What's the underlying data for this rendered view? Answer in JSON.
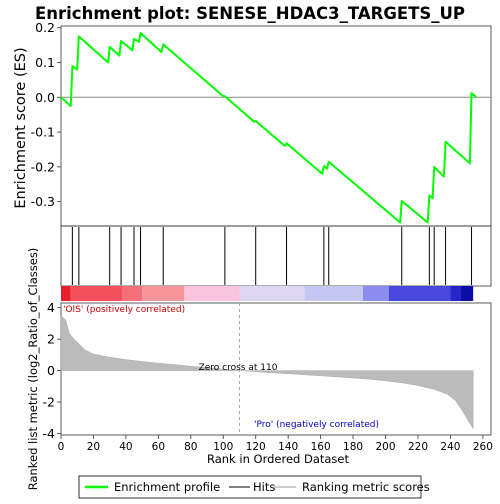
{
  "title": "Enrichment plot: SENESE_HDAC3_TARGETS_UP",
  "es_ylabel": "Enrichment score (ES)",
  "metric_ylabel": "Ranked list metric (log2_Ratio_of_Classes)",
  "xlabel": "Rank in Ordered Dataset",
  "pos_label": "'OIS' (positively correlated)",
  "neg_label": "'Pro' (negatively correlated)",
  "zero_cross_label": "Zero cross at 110",
  "legend": {
    "profile": "Enrichment profile",
    "hits": "Hits",
    "metric": "Ranking metric scores"
  },
  "colors": {
    "profile": "#00ff00",
    "pos_text": "#cc0000",
    "neg_text": "#0000cc",
    "metric_fill": "#bbbbbb",
    "hit_line": "#000000"
  },
  "chart_data": {
    "type": "line",
    "xlim": [
      0,
      265
    ],
    "x_ticks": [
      0,
      20,
      40,
      60,
      80,
      100,
      120,
      140,
      160,
      180,
      200,
      220,
      240,
      260
    ],
    "es_ylim": [
      -0.37,
      0.205
    ],
    "es_ticks": [
      {
        "v": 0.2,
        "label": "0.2"
      },
      {
        "v": 0.1,
        "label": "0.1"
      },
      {
        "v": 0.0,
        "label": "0.0"
      },
      {
        "v": -0.1,
        "label": "-0.1"
      },
      {
        "v": -0.2,
        "label": "-0.2"
      },
      {
        "v": -0.3,
        "label": "-0.3"
      }
    ],
    "metric_ylim": [
      -4.1,
      4.3
    ],
    "metric_ticks": [
      4,
      2,
      0,
      -2,
      -4
    ],
    "zero_cross": 110,
    "n_genes": 254,
    "hits": [
      7,
      11,
      30,
      37,
      45,
      49,
      63,
      101,
      120,
      139,
      162,
      165,
      210,
      227,
      230,
      237,
      253
    ],
    "es_points": [
      [
        0,
        0.0
      ],
      [
        6,
        -0.025
      ],
      [
        7,
        0.09
      ],
      [
        10,
        0.08
      ],
      [
        11,
        0.175
      ],
      [
        29,
        0.1
      ],
      [
        30,
        0.145
      ],
      [
        36,
        0.12
      ],
      [
        37,
        0.162
      ],
      [
        44,
        0.135
      ],
      [
        45,
        0.168
      ],
      [
        48,
        0.16
      ],
      [
        49,
        0.185
      ],
      [
        62,
        0.13
      ],
      [
        63,
        0.152
      ],
      [
        100,
        0.003
      ],
      [
        101,
        0.003
      ],
      [
        119,
        -0.07
      ],
      [
        120,
        -0.068
      ],
      [
        138,
        -0.14
      ],
      [
        139,
        -0.132
      ],
      [
        161,
        -0.22
      ],
      [
        162,
        -0.198
      ],
      [
        164,
        -0.205
      ],
      [
        165,
        -0.185
      ],
      [
        209,
        -0.36
      ],
      [
        210,
        -0.298
      ],
      [
        226,
        -0.36
      ],
      [
        227,
        -0.282
      ],
      [
        229,
        -0.29
      ],
      [
        230,
        -0.2
      ],
      [
        236,
        -0.228
      ],
      [
        237,
        -0.128
      ],
      [
        252,
        -0.19
      ],
      [
        253,
        0.012
      ],
      [
        256,
        0.0
      ]
    ],
    "metric_profile": [
      [
        0,
        3.5
      ],
      [
        3,
        3.2
      ],
      [
        5,
        2.4
      ],
      [
        8,
        2.0
      ],
      [
        12,
        1.6
      ],
      [
        15,
        1.3
      ],
      [
        20,
        1.05
      ],
      [
        30,
        0.85
      ],
      [
        40,
        0.7
      ],
      [
        50,
        0.58
      ],
      [
        60,
        0.47
      ],
      [
        70,
        0.38
      ],
      [
        80,
        0.28
      ],
      [
        90,
        0.18
      ],
      [
        100,
        0.09
      ],
      [
        110,
        0.0
      ],
      [
        120,
        -0.07
      ],
      [
        130,
        -0.14
      ],
      [
        140,
        -0.2
      ],
      [
        150,
        -0.27
      ],
      [
        160,
        -0.33
      ],
      [
        170,
        -0.4
      ],
      [
        180,
        -0.47
      ],
      [
        190,
        -0.55
      ],
      [
        200,
        -0.65
      ],
      [
        210,
        -0.78
      ],
      [
        220,
        -0.95
      ],
      [
        230,
        -1.2
      ],
      [
        238,
        -1.5
      ],
      [
        243,
        -1.9
      ],
      [
        247,
        -2.5
      ],
      [
        251,
        -3.2
      ],
      [
        254,
        -3.7
      ]
    ],
    "colorbar": [
      {
        "from": 0,
        "to": 6,
        "color": "#e8202e"
      },
      {
        "from": 6,
        "to": 38,
        "color": "#f2505a"
      },
      {
        "from": 38,
        "to": 50,
        "color": "#f37078"
      },
      {
        "from": 50,
        "to": 76,
        "color": "#f7969a"
      },
      {
        "from": 76,
        "to": 110,
        "color": "#fac4de"
      },
      {
        "from": 110,
        "to": 150,
        "color": "#dcd6f2"
      },
      {
        "from": 150,
        "to": 186,
        "color": "#c6c6f2"
      },
      {
        "from": 186,
        "to": 202,
        "color": "#8c8cee"
      },
      {
        "from": 202,
        "to": 240,
        "color": "#4848dc"
      },
      {
        "from": 240,
        "to": 246,
        "color": "#2626c8"
      },
      {
        "from": 246,
        "to": 254,
        "color": "#0c0ca6"
      }
    ]
  }
}
